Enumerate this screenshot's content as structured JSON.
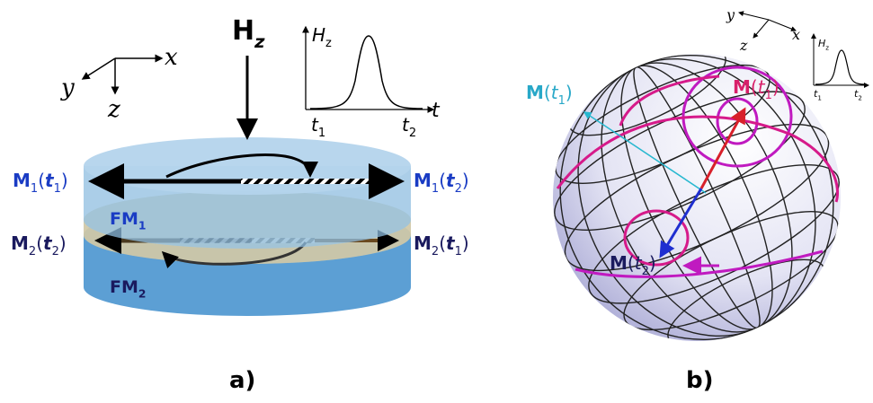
{
  "panel_a": {
    "field_label": [
      {
        "t": "H",
        "b": true
      },
      {
        "t": "z",
        "b": true,
        "i": true,
        "s": true
      }
    ],
    "axis_x": [
      {
        "t": "x",
        "i": true
      }
    ],
    "axis_y": [
      {
        "t": "y",
        "i": true
      }
    ],
    "axis_z": [
      {
        "t": "z",
        "i": true
      }
    ],
    "inset": {
      "y_label": [
        {
          "t": "H",
          "i": true
        },
        {
          "t": "z",
          "s": true
        }
      ],
      "x_label": [
        {
          "t": "t",
          "i": true
        }
      ],
      "t1": [
        {
          "t": "t",
          "i": true
        },
        {
          "t": "1",
          "s": true
        }
      ],
      "t2": [
        {
          "t": "t",
          "i": true
        },
        {
          "t": "2",
          "s": true
        }
      ]
    },
    "m1_left": [
      {
        "t": "M",
        "b": true
      },
      {
        "t": "1",
        "s": true
      },
      {
        "t": "("
      },
      {
        "t": "t",
        "i": true,
        "b": true
      },
      {
        "t": "1",
        "s": true
      },
      {
        "t": ")"
      }
    ],
    "m1_right": [
      {
        "t": "M",
        "b": true
      },
      {
        "t": "1",
        "s": true
      },
      {
        "t": "("
      },
      {
        "t": "t",
        "i": true,
        "b": true
      },
      {
        "t": "2",
        "s": true
      },
      {
        "t": ")"
      }
    ],
    "fm1": [
      {
        "t": "FM",
        "b": true
      },
      {
        "t": "1",
        "b": true,
        "s": true
      }
    ],
    "m2_left": [
      {
        "t": "M",
        "b": true
      },
      {
        "t": "2",
        "s": true
      },
      {
        "t": "("
      },
      {
        "t": "t",
        "i": true,
        "b": true
      },
      {
        "t": "2",
        "s": true
      },
      {
        "t": ")"
      }
    ],
    "m2_right": [
      {
        "t": "M",
        "b": true
      },
      {
        "t": "2",
        "s": true
      },
      {
        "t": "("
      },
      {
        "t": "t",
        "i": true,
        "b": true
      },
      {
        "t": "1",
        "s": true
      },
      {
        "t": ")"
      }
    ],
    "fm2": [
      {
        "t": "FM",
        "b": true
      },
      {
        "t": "2",
        "b": true,
        "s": true
      }
    ],
    "caption": [
      {
        "t": "a)",
        "b": true
      }
    ]
  },
  "panel_b": {
    "axis_x": [
      {
        "t": "x",
        "i": true
      }
    ],
    "axis_y": [
      {
        "t": "y",
        "i": true
      }
    ],
    "axis_z": [
      {
        "t": "z",
        "i": true
      }
    ],
    "inset": {
      "y_label": [
        {
          "t": "H",
          "i": true
        },
        {
          "t": "z",
          "s": true
        }
      ],
      "t1": [
        {
          "t": "t",
          "i": true
        },
        {
          "t": "1",
          "s": true
        }
      ],
      "t2": [
        {
          "t": "t",
          "i": true
        },
        {
          "t": "2",
          "s": true
        }
      ]
    },
    "m_initial_cyan": [
      {
        "t": "M",
        "b": true
      },
      {
        "t": "("
      },
      {
        "t": "t",
        "i": true
      },
      {
        "t": "1",
        "s": true
      },
      {
        "t": ")"
      }
    ],
    "m_initial_pink": [
      {
        "t": "M",
        "b": true
      },
      {
        "t": "("
      },
      {
        "t": "t",
        "i": true
      },
      {
        "t": "1",
        "s": true
      },
      {
        "t": ")"
      }
    ],
    "m_final": [
      {
        "t": "M",
        "b": true
      },
      {
        "t": "("
      },
      {
        "t": "t",
        "i": true
      },
      {
        "t": "2",
        "s": true
      },
      {
        "t": ")"
      }
    ],
    "caption": [
      {
        "t": "b)",
        "b": true
      }
    ]
  }
}
